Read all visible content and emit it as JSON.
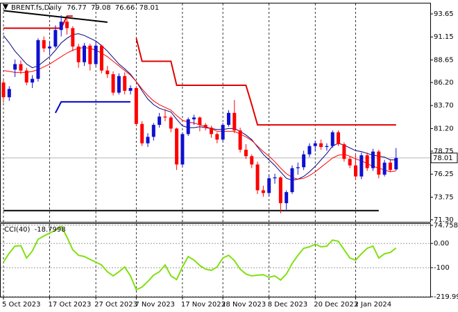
{
  "chart_data": [
    {
      "type": "candlestick",
      "title": "BRENT.fs,Daily",
      "categories": [
        "5 Oct 2023",
        null,
        null,
        null,
        null,
        null,
        null,
        null,
        "17 Oct 2023",
        null,
        null,
        null,
        null,
        null,
        null,
        null,
        "27 Oct 2023",
        null,
        null,
        null,
        null,
        null,
        null,
        "7 Nov 2023",
        null,
        null,
        null,
        null,
        null,
        null,
        null,
        "17 Nov 2023",
        null,
        null,
        null,
        null,
        null,
        null,
        "28 Nov 2023",
        null,
        null,
        null,
        null,
        null,
        null,
        null,
        "8 Dec 2023",
        null,
        null,
        null,
        null,
        null,
        null,
        null,
        "20 Dec 2023",
        null,
        null,
        null,
        null,
        null,
        null,
        "2 Jan 2024",
        null,
        null,
        null,
        null,
        null,
        null,
        null
      ],
      "open": [
        86.2,
        84.6,
        87.6,
        88.2,
        87.5,
        86.2,
        86.6,
        90.8,
        89.9,
        90.1,
        91.9,
        92.8,
        92.1,
        90.1,
        88.4,
        90.2,
        88.2,
        90.2,
        87.5,
        87.1,
        85.1,
        86.9,
        85.3,
        85.6,
        81.7,
        79.6,
        80.3,
        81.6,
        82.5,
        82.4,
        81.2,
        77.3,
        80.6,
        82.2,
        82.4,
        81.6,
        81.3,
        80.6,
        80.0,
        81.6,
        82.9,
        81.0,
        78.9,
        78.2,
        77.3,
        74.5,
        74.2,
        75.8,
        75.9,
        73.1,
        74.3,
        76.9,
        77.0,
        78.4,
        79.3,
        79.6,
        79.2,
        79.3,
        80.8,
        79.5,
        77.9,
        77.2,
        76.0,
        78.3,
        76.9,
        78.7,
        76.2,
        77.5,
        76.77
      ],
      "high": [
        86.5,
        85.8,
        88.7,
        88.6,
        87.8,
        87.0,
        91.0,
        91.2,
        90.7,
        92.4,
        93.5,
        93.1,
        92.3,
        90.4,
        90.5,
        90.4,
        90.7,
        90.3,
        88.0,
        87.4,
        87.2,
        87.3,
        85.9,
        85.8,
        82.0,
        80.7,
        81.8,
        82.9,
        83.3,
        82.6,
        81.3,
        80.8,
        82.4,
        82.7,
        82.5,
        81.8,
        81.5,
        80.8,
        81.8,
        83.2,
        84.3,
        81.3,
        79.5,
        78.4,
        77.6,
        75.0,
        76.1,
        76.3,
        76.0,
        74.5,
        77.2,
        77.5,
        78.8,
        79.6,
        79.9,
        80.0,
        79.6,
        81.0,
        81.0,
        79.7,
        78.2,
        78.4,
        78.6,
        78.6,
        79.0,
        78.9,
        77.8,
        77.9,
        79.08
      ],
      "low": [
        84.0,
        84.2,
        86.8,
        87.1,
        85.9,
        85.6,
        86.3,
        89.5,
        89.3,
        89.9,
        91.2,
        91.4,
        89.6,
        87.8,
        88.0,
        87.5,
        88.0,
        87.2,
        86.7,
        84.8,
        84.9,
        84.9,
        84.9,
        81.5,
        79.3,
        79.2,
        79.9,
        81.3,
        82.0,
        80.8,
        76.7,
        77.1,
        80.4,
        81.6,
        80.9,
        81.0,
        80.2,
        79.6,
        79.8,
        81.4,
        80.7,
        78.6,
        77.9,
        76.9,
        74.1,
        73.8,
        73.9,
        75.2,
        72.0,
        72.4,
        74.1,
        76.2,
        76.7,
        78.1,
        78.7,
        78.9,
        78.8,
        79.1,
        79.3,
        77.6,
        76.9,
        75.6,
        75.7,
        76.6,
        76.6,
        75.8,
        76.0,
        76.5,
        76.66
      ],
      "close": [
        84.6,
        85.5,
        88.2,
        87.5,
        86.2,
        86.6,
        90.8,
        89.9,
        90.1,
        91.9,
        92.8,
        92.1,
        90.1,
        88.4,
        90.2,
        88.2,
        90.2,
        87.5,
        87.1,
        85.1,
        86.9,
        85.3,
        85.6,
        81.7,
        79.6,
        80.3,
        81.6,
        82.5,
        82.4,
        81.2,
        77.3,
        80.6,
        82.2,
        82.4,
        81.6,
        81.3,
        80.6,
        80.0,
        81.6,
        82.9,
        81.0,
        78.9,
        78.2,
        77.3,
        74.5,
        74.2,
        75.8,
        75.9,
        73.1,
        74.3,
        76.9,
        77.0,
        78.4,
        79.3,
        79.6,
        79.2,
        79.3,
        80.8,
        79.5,
        77.9,
        77.2,
        76.0,
        78.3,
        76.9,
        78.7,
        76.2,
        77.5,
        76.7,
        78.01
      ],
      "up_color": "#1010d0",
      "down_color": "#ff0000",
      "lines": [
        {
          "color": "#000080",
          "width": 1,
          "values": [
            91.3,
            90.5,
            89.6,
            88.9,
            88.2,
            87.8,
            88.0,
            88.5,
            89.0,
            89.7,
            90.5,
            91.0,
            91.4,
            91.5,
            91.3,
            91.0,
            90.7,
            90.2,
            89.6,
            88.9,
            88.2,
            87.7,
            87.1,
            86.3,
            85.3,
            84.4,
            83.8,
            83.4,
            83.2,
            83.0,
            82.2,
            81.5,
            81.3,
            81.3,
            81.4,
            81.3,
            81.2,
            81.1,
            81.1,
            81.2,
            81.2,
            80.9,
            80.5,
            80.0,
            79.2,
            78.4,
            77.8,
            77.2,
            76.5,
            75.8,
            75.6,
            75.7,
            76.0,
            76.5,
            77.1,
            77.8,
            78.5,
            79.3,
            79.6,
            79.4,
            79.1,
            78.8,
            78.7,
            78.5,
            78.3,
            78.2,
            78.1,
            77.8,
            77.8
          ]
        },
        {
          "color": "#ff0000",
          "width": 1,
          "values": [
            87.5,
            87.4,
            87.3,
            87.3,
            87.3,
            87.4,
            87.6,
            87.9,
            88.2,
            88.6,
            89.0,
            89.4,
            89.7,
            89.9,
            90.0,
            89.9,
            89.7,
            89.4,
            89.0,
            88.5,
            88.0,
            87.5,
            87.0,
            86.3,
            85.5,
            84.8,
            84.2,
            83.8,
            83.5,
            83.2,
            82.6,
            82.1,
            81.9,
            81.8,
            81.6,
            81.4,
            81.2,
            80.9,
            80.9,
            80.9,
            80.9,
            80.6,
            80.3,
            79.9,
            79.3,
            78.7,
            78.2,
            77.6,
            76.9,
            76.3,
            75.9,
            75.7,
            75.8,
            76.1,
            76.5,
            77.0,
            77.5,
            78.0,
            78.3,
            78.4,
            78.2,
            77.9,
            77.7,
            77.4,
            77.1,
            76.9,
            76.7,
            76.5,
            76.6
          ]
        },
        {
          "color": "#e00000",
          "width": 2,
          "values": [
            92.1,
            92.1,
            92.1,
            92.1,
            92.1,
            92.1,
            92.1,
            92.1,
            92.1,
            92.1,
            92.1,
            93.4,
            93.4,
            null,
            null,
            null,
            null,
            null,
            null,
            null,
            null,
            null,
            null,
            91.0,
            88.5,
            88.5,
            88.5,
            88.5,
            88.5,
            88.5,
            85.9,
            85.9,
            85.9,
            85.9,
            85.9,
            85.9,
            85.9,
            85.9,
            85.9,
            85.9,
            85.9,
            85.9,
            85.9,
            83.8,
            81.6,
            81.6,
            81.6,
            81.6,
            81.6,
            81.6,
            81.6,
            81.6,
            81.6,
            81.6,
            81.6,
            81.6,
            81.6,
            81.6,
            81.6,
            81.6,
            81.6,
            81.6,
            81.6,
            81.6,
            81.6,
            81.6,
            81.6,
            81.6,
            81.6
          ]
        }
      ],
      "segments": [
        {
          "color": "#000000",
          "x": [
            0,
            18
          ],
          "values": [
            94.0,
            92.75
          ]
        },
        {
          "color": "#0000cc",
          "x": [
            9,
            10,
            22
          ],
          "values": [
            82.9,
            84.1,
            84.1
          ]
        },
        {
          "color": "#000000",
          "x": [
            0,
            65
          ],
          "values": [
            72.3,
            72.3
          ]
        }
      ],
      "ylim": [
        71.07,
        94.78
      ],
      "yticks": [
        93.65,
        91.15,
        88.65,
        {
          "value": 86.2,
          "label": "86.20"
        },
        {
          "value": 83.7,
          "label": "83.70"
        },
        {
          "value": 81.2,
          "label": "81.20"
        },
        78.75,
        76.25,
        73.75,
        {
          "value": 71.3,
          "label": "71.30"
        }
      ]
    },
    {
      "type": "line",
      "title": "CCI(40)",
      "last_value": -18.7998,
      "color": "#80e010",
      "values": [
        -77,
        -40,
        -11,
        -9,
        -60,
        -31,
        17,
        31,
        43,
        54,
        71,
        26,
        -26,
        -49,
        -54,
        -66,
        -77,
        -89,
        -117,
        -134,
        -117,
        -97,
        -134,
        -191,
        -180,
        -157,
        -131,
        -117,
        -89,
        -134,
        -149,
        -97,
        -54,
        -69,
        -91,
        -106,
        -111,
        -97,
        -60,
        -49,
        -71,
        -106,
        -126,
        -134,
        -131,
        -129,
        -140,
        -134,
        -151,
        -126,
        -83,
        -49,
        -20,
        -14,
        -3,
        -14,
        -11,
        14,
        9,
        -26,
        -60,
        -69,
        -43,
        -20,
        -11,
        -60,
        -43,
        -37,
        -18.7998
      ],
      "ylim": [
        -219.996,
        74.7584
      ],
      "yticks": [
        74.7584,
        {
          "value": 0,
          "label": "0.00"
        },
        -100,
        -219.996
      ]
    }
  ]
}
